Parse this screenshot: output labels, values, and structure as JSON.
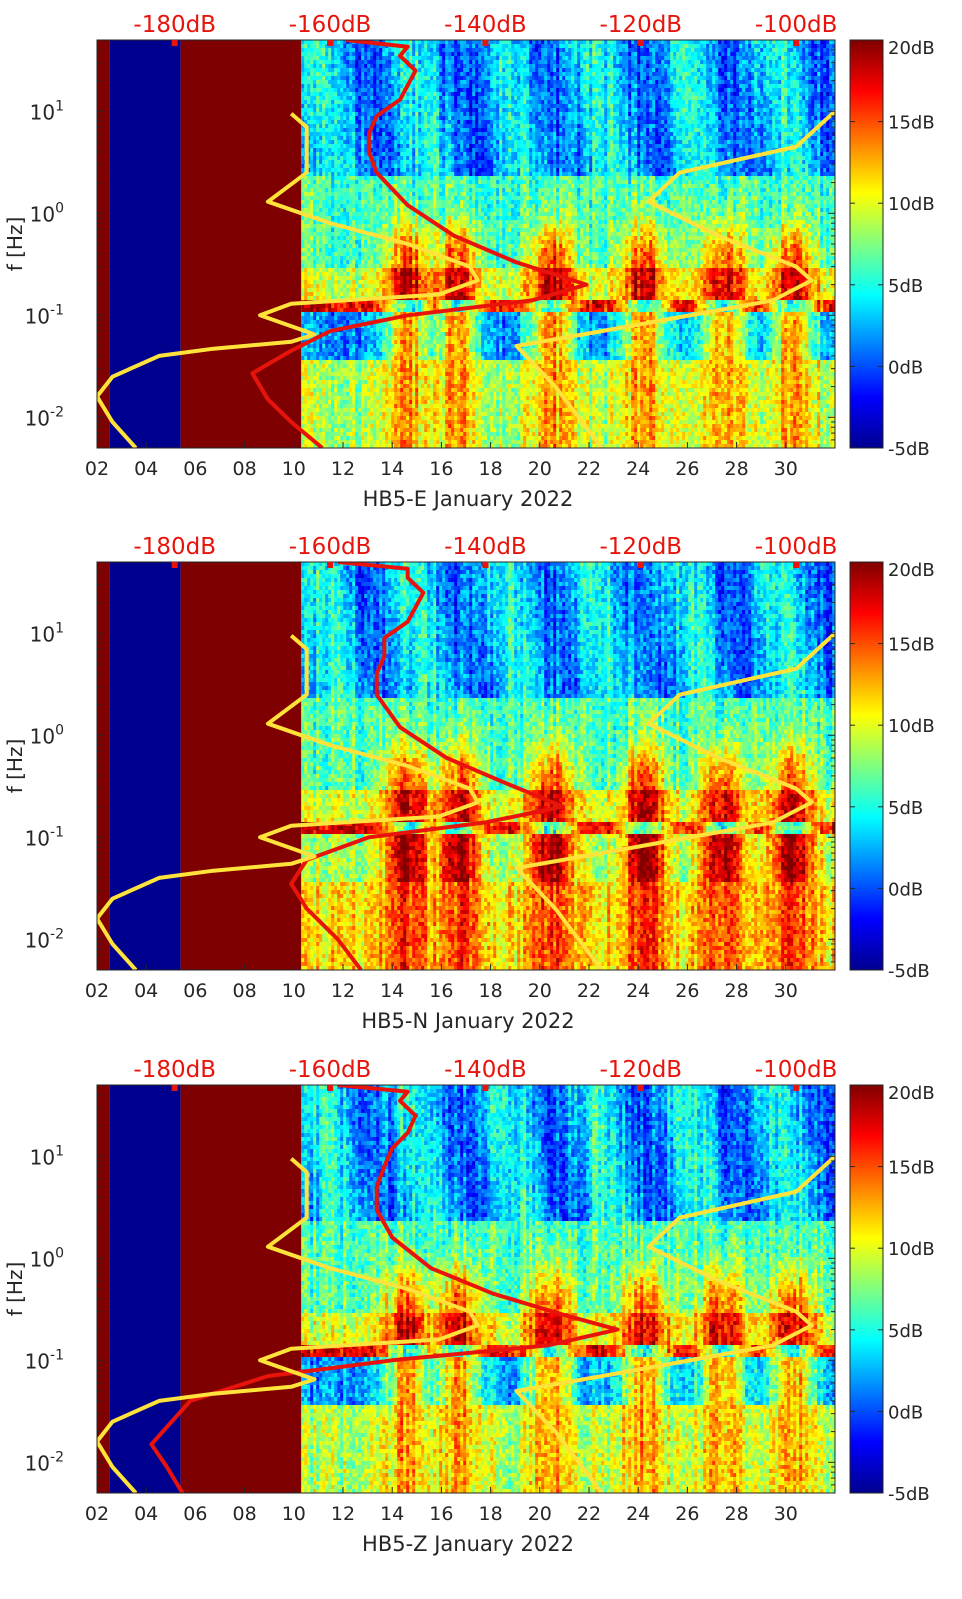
{
  "colors": {
    "top_axis_red": "#e8140c",
    "red_curve": "#e8140c",
    "yellow_curve": "#ffe33a",
    "band_dark_red": "#7f0000",
    "band_dark_blue": "#00008f",
    "jet_colormap": [
      "#00008f",
      "#0000ff",
      "#00ffff",
      "#ffff00",
      "#ff0000",
      "#800000"
    ]
  },
  "chart_data": [
    {
      "type": "heatmap",
      "title": "",
      "xlabel": "HB5-E January 2022",
      "ylabel": "f [Hz]",
      "y_scale": "log",
      "ylim": [
        0.005,
        50
      ],
      "xlim": [
        2,
        32
      ],
      "x_ticks": [
        "02",
        "04",
        "06",
        "08",
        "10",
        "12",
        "14",
        "16",
        "18",
        "20",
        "22",
        "24",
        "26",
        "28",
        "30"
      ],
      "y_ticks": [
        "10-2",
        "10-1",
        "100",
        "101"
      ],
      "top_axis_ticks": [
        "-180dB",
        "-160dB",
        "-140dB",
        "-120dB",
        "-100dB"
      ],
      "top_axis_range_dB": [
        -190,
        -95
      ],
      "colorbar": {
        "range_dB": [
          -5,
          20
        ],
        "ticks": [
          "-5dB",
          "0dB",
          "5dB",
          "10dB",
          "15dB",
          "20dB"
        ]
      },
      "background_bands": [
        {
          "x_range": [
            2,
            2.5
          ],
          "color": "dark-red"
        },
        {
          "x_range": [
            2.5,
            5.4
          ],
          "color": "dark-blue"
        },
        {
          "x_range": [
            5.4,
            10.3
          ],
          "color": "dark-red"
        }
      ],
      "series": [
        {
          "color": "red",
          "x_unit": "dB",
          "points": [
            [
              -158,
              50
            ],
            [
              -150,
              43
            ],
            [
              -151,
              35
            ],
            [
              -149,
              25
            ],
            [
              -150,
              18
            ],
            [
              -151,
              13
            ],
            [
              -154,
              9
            ],
            [
              -155,
              6
            ],
            [
              -155,
              4
            ],
            [
              -154,
              2.5
            ],
            [
              -150,
              1.2
            ],
            [
              -144,
              0.6
            ],
            [
              -136,
              0.33
            ],
            [
              -127,
              0.2
            ],
            [
              -134,
              0.14
            ],
            [
              -150,
              0.1
            ],
            [
              -160,
              0.07
            ],
            [
              -165,
              0.045
            ],
            [
              -170,
              0.027
            ],
            [
              -168,
              0.015
            ],
            [
              -165,
              0.009
            ],
            [
              -161,
              0.005
            ]
          ]
        },
        {
          "color": "yellow",
          "x_unit": "dB",
          "points": [
            [
              -165,
              9.5
            ],
            [
              -163,
              7
            ],
            [
              -163,
              2.5
            ],
            [
              -168,
              1.3
            ],
            [
              -160,
              0.8
            ],
            [
              -150,
              0.5
            ],
            [
              -142,
              0.3
            ],
            [
              -141,
              0.22
            ],
            [
              -146,
              0.16
            ],
            [
              -165,
              0.13
            ],
            [
              -169,
              0.1
            ],
            [
              -162,
              0.065
            ],
            [
              -165,
              0.055
            ],
            [
              -175,
              0.047
            ],
            [
              -182,
              0.04
            ],
            [
              -188,
              0.025
            ],
            [
              -190,
              0.016
            ],
            [
              -188,
              0.009
            ],
            [
              -185,
              0.005
            ]
          ]
        },
        {
          "color": "yellow",
          "x_unit": "dB",
          "points": [
            [
              -95,
              10
            ],
            [
              -100,
              4.5
            ],
            [
              -115,
              2.5
            ],
            [
              -119,
              1.3
            ],
            [
              -110,
              0.6
            ],
            [
              -100,
              0.3
            ],
            [
              -98,
              0.22
            ],
            [
              -103,
              0.14
            ],
            [
              -125,
              0.07
            ],
            [
              -136,
              0.05
            ],
            [
              -131,
              0.02
            ],
            [
              -125,
              0.005
            ]
          ]
        }
      ]
    },
    {
      "type": "heatmap",
      "title": "",
      "xlabel": "HB5-N January 2022",
      "ylabel": "f [Hz]",
      "y_scale": "log",
      "ylim": [
        0.005,
        50
      ],
      "xlim": [
        2,
        32
      ],
      "x_ticks": [
        "02",
        "04",
        "06",
        "08",
        "10",
        "12",
        "14",
        "16",
        "18",
        "20",
        "22",
        "24",
        "26",
        "28",
        "30"
      ],
      "y_ticks": [
        "10-2",
        "10-1",
        "100",
        "101"
      ],
      "top_axis_ticks": [
        "-180dB",
        "-160dB",
        "-140dB",
        "-120dB",
        "-100dB"
      ],
      "top_axis_range_dB": [
        -190,
        -95
      ],
      "colorbar": {
        "range_dB": [
          -5,
          20
        ],
        "ticks": [
          "-5dB",
          "0dB",
          "5dB",
          "10dB",
          "15dB",
          "20dB"
        ]
      },
      "background_bands": [
        {
          "x_range": [
            2,
            2.5
          ],
          "color": "dark-red"
        },
        {
          "x_range": [
            2.5,
            5.4
          ],
          "color": "dark-blue"
        },
        {
          "x_range": [
            5.4,
            10.3
          ],
          "color": "dark-red"
        }
      ],
      "series": [
        {
          "color": "red",
          "x_unit": "dB",
          "points": [
            [
              -159,
              50
            ],
            [
              -150,
              43
            ],
            [
              -150,
              35
            ],
            [
              -148,
              25
            ],
            [
              -149,
              18
            ],
            [
              -150,
              13
            ],
            [
              -153,
              9
            ],
            [
              -153,
              6
            ],
            [
              -154,
              4
            ],
            [
              -154,
              2.5
            ],
            [
              -151,
              1.2
            ],
            [
              -145,
              0.6
            ],
            [
              -137,
              0.33
            ],
            [
              -130,
              0.2
            ],
            [
              -140,
              0.14
            ],
            [
              -155,
              0.1
            ],
            [
              -163,
              0.06
            ],
            [
              -165,
              0.035
            ],
            [
              -163,
              0.02
            ],
            [
              -159,
              0.01
            ],
            [
              -156,
              0.005
            ]
          ]
        },
        {
          "color": "yellow",
          "x_unit": "dB",
          "points": [
            [
              -165,
              9.5
            ],
            [
              -163,
              7
            ],
            [
              -163,
              2.5
            ],
            [
              -168,
              1.3
            ],
            [
              -160,
              0.8
            ],
            [
              -150,
              0.5
            ],
            [
              -142,
              0.3
            ],
            [
              -141,
              0.22
            ],
            [
              -146,
              0.16
            ],
            [
              -165,
              0.13
            ],
            [
              -169,
              0.1
            ],
            [
              -162,
              0.065
            ],
            [
              -165,
              0.055
            ],
            [
              -175,
              0.047
            ],
            [
              -182,
              0.04
            ],
            [
              -188,
              0.025
            ],
            [
              -190,
              0.016
            ],
            [
              -188,
              0.009
            ],
            [
              -185,
              0.005
            ]
          ]
        },
        {
          "color": "yellow",
          "x_unit": "dB",
          "points": [
            [
              -95,
              10
            ],
            [
              -100,
              4.5
            ],
            [
              -115,
              2.5
            ],
            [
              -119,
              1.3
            ],
            [
              -110,
              0.6
            ],
            [
              -100,
              0.3
            ],
            [
              -98,
              0.22
            ],
            [
              -103,
              0.14
            ],
            [
              -125,
              0.07
            ],
            [
              -136,
              0.05
            ],
            [
              -131,
              0.02
            ],
            [
              -125,
              0.005
            ]
          ]
        }
      ]
    },
    {
      "type": "heatmap",
      "title": "",
      "xlabel": "HB5-Z January 2022",
      "ylabel": "f [Hz]",
      "y_scale": "log",
      "ylim": [
        0.005,
        50
      ],
      "xlim": [
        2,
        32
      ],
      "x_ticks": [
        "02",
        "04",
        "06",
        "08",
        "10",
        "12",
        "14",
        "16",
        "18",
        "20",
        "22",
        "24",
        "26",
        "28",
        "30"
      ],
      "y_ticks": [
        "10-2",
        "10-1",
        "100",
        "101"
      ],
      "top_axis_ticks": [
        "-180dB",
        "-160dB",
        "-140dB",
        "-120dB",
        "-100dB"
      ],
      "top_axis_range_dB": [
        -190,
        -95
      ],
      "colorbar": {
        "range_dB": [
          -5,
          20
        ],
        "ticks": [
          "-5dB",
          "0dB",
          "5dB",
          "10dB",
          "15dB",
          "20dB"
        ]
      },
      "background_bands": [
        {
          "x_range": [
            2,
            2.5
          ],
          "color": "dark-red"
        },
        {
          "x_range": [
            2.5,
            5.4
          ],
          "color": "dark-blue"
        },
        {
          "x_range": [
            5.4,
            10.3
          ],
          "color": "dark-red"
        }
      ],
      "series": [
        {
          "color": "red",
          "x_unit": "dB",
          "points": [
            [
              -159,
              50
            ],
            [
              -150,
              43
            ],
            [
              -151,
              35
            ],
            [
              -149,
              25
            ],
            [
              -150,
              17
            ],
            [
              -152,
              12
            ],
            [
              -153,
              8
            ],
            [
              -154,
              5
            ],
            [
              -154,
              3
            ],
            [
              -152,
              1.6
            ],
            [
              -147,
              0.8
            ],
            [
              -139,
              0.45
            ],
            [
              -130,
              0.28
            ],
            [
              -123,
              0.2
            ],
            [
              -132,
              0.14
            ],
            [
              -152,
              0.1
            ],
            [
              -168,
              0.07
            ],
            [
              -178,
              0.04
            ],
            [
              -183,
              0.015
            ],
            [
              -181,
              0.009
            ],
            [
              -179,
              0.005
            ]
          ]
        },
        {
          "color": "yellow",
          "x_unit": "dB",
          "points": [
            [
              -165,
              9.5
            ],
            [
              -163,
              7
            ],
            [
              -163,
              2.5
            ],
            [
              -168,
              1.3
            ],
            [
              -160,
              0.8
            ],
            [
              -150,
              0.5
            ],
            [
              -142,
              0.3
            ],
            [
              -141,
              0.22
            ],
            [
              -146,
              0.16
            ],
            [
              -165,
              0.13
            ],
            [
              -169,
              0.1
            ],
            [
              -162,
              0.065
            ],
            [
              -165,
              0.055
            ],
            [
              -175,
              0.047
            ],
            [
              -182,
              0.04
            ],
            [
              -188,
              0.025
            ],
            [
              -190,
              0.016
            ],
            [
              -188,
              0.009
            ],
            [
              -185,
              0.005
            ]
          ]
        },
        {
          "color": "yellow",
          "x_unit": "dB",
          "points": [
            [
              -95,
              10
            ],
            [
              -100,
              4.5
            ],
            [
              -115,
              2.5
            ],
            [
              -119,
              1.3
            ],
            [
              -110,
              0.6
            ],
            [
              -100,
              0.3
            ],
            [
              -98,
              0.22
            ],
            [
              -103,
              0.14
            ],
            [
              -125,
              0.07
            ],
            [
              -136,
              0.05
            ],
            [
              -131,
              0.02
            ],
            [
              -125,
              0.005
            ]
          ]
        }
      ]
    }
  ]
}
